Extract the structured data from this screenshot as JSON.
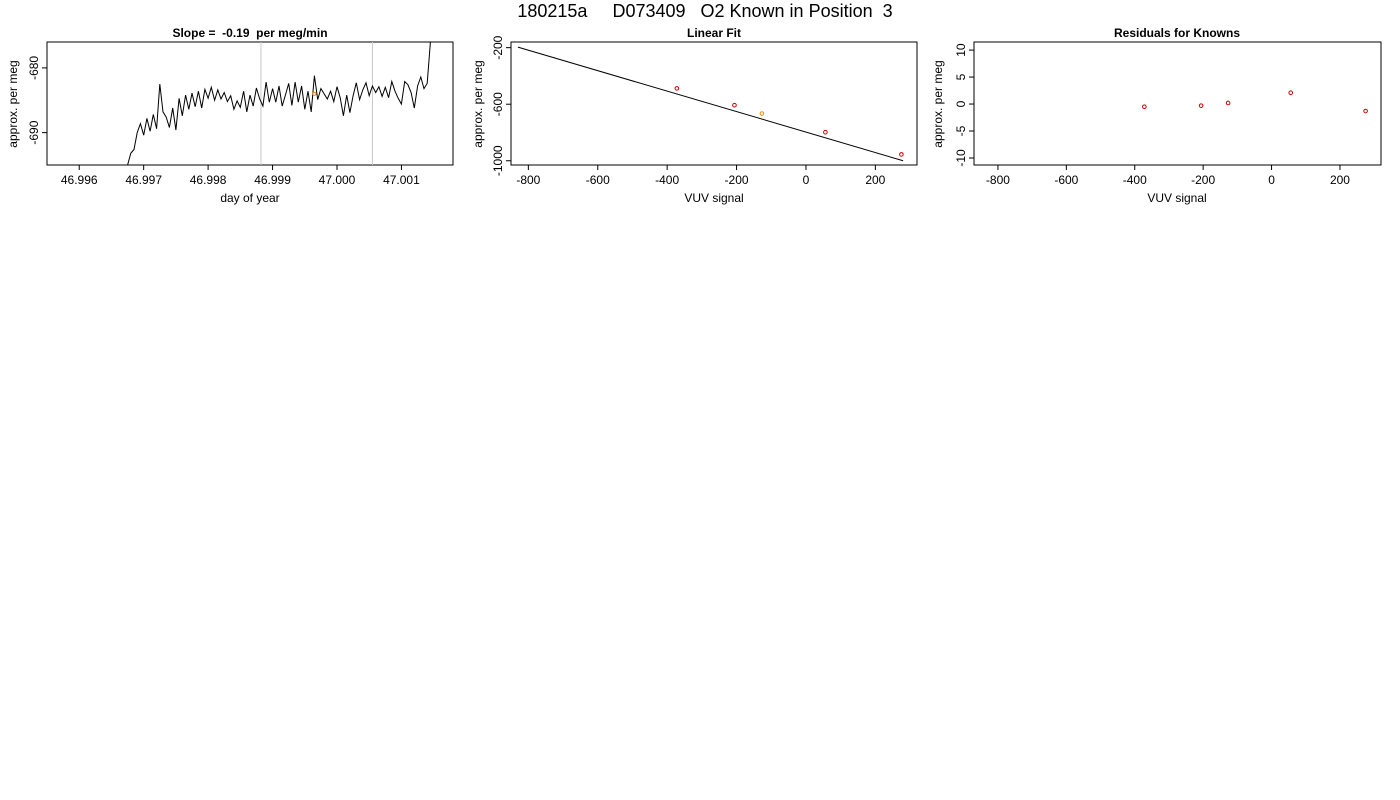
{
  "title": "180215a     D073409   O2 Known in Position  3",
  "chart_data": [
    {
      "type": "line",
      "title": "Slope =  -0.19  per meg/min",
      "xlabel": "day of year",
      "ylabel": "approx. per meg",
      "xlim": [
        46.9955,
        47.0018
      ],
      "ylim": [
        -695.0,
        -676.0
      ],
      "xticks": [
        "46.996",
        "46.997",
        "46.998",
        "46.999",
        "47.000",
        "47.001"
      ],
      "xtick_values": [
        46.996,
        46.997,
        46.998,
        46.999,
        47.0,
        47.001
      ],
      "yticks": [
        "-680",
        "-690"
      ],
      "ytick_values": [
        -680,
        -690
      ],
      "vlines_x": [
        46.99882,
        47.00055
      ],
      "vline_color": "#c8c8c8",
      "line_color": "#000000",
      "marker_color": "#ff8c00",
      "marker": {
        "x": 46.99965,
        "y": -684.0
      },
      "series": [
        {
          "x": [
            46.99675,
            46.9968,
            46.99685,
            46.9969,
            46.99695,
            46.997,
            46.99705,
            46.9971,
            46.99715,
            46.9972,
            46.99725,
            46.9973,
            46.99735,
            46.9974,
            46.99745,
            46.9975,
            46.99755,
            46.9976,
            46.99765,
            46.9977,
            46.99775,
            46.9978,
            46.99785,
            46.9979,
            46.99795,
            46.998,
            46.99805,
            46.9981,
            46.99815,
            46.9982,
            46.99825,
            46.9983,
            46.99835,
            46.9984,
            46.99845,
            46.9985,
            46.99855,
            46.9986,
            46.99865,
            46.9987,
            46.99875,
            46.9988,
            46.99885,
            46.9989,
            46.99895,
            46.999,
            46.99905,
            46.9991,
            46.99915,
            46.9992,
            46.99925,
            46.9993,
            46.99935,
            46.9994,
            46.99945,
            46.9995,
            46.99955,
            46.9996,
            46.99965,
            46.9997,
            46.99975,
            46.9998,
            46.99985,
            46.9999,
            46.99995,
            47.0,
            47.00005,
            47.0001,
            47.00015,
            47.0002,
            47.00025,
            47.0003,
            47.00035,
            47.0004,
            47.00045,
            47.0005,
            47.00055,
            47.0006,
            47.00065,
            47.0007,
            47.00075,
            47.0008,
            47.00085,
            47.0009,
            47.00095,
            47.001,
            47.00105,
            47.0011,
            47.00115,
            47.0012,
            47.00125,
            47.0013,
            47.00135,
            47.0014,
            47.00145
          ],
          "y": [
            -695.0,
            -693.2,
            -692.6,
            -690.0,
            -688.6,
            -690.4,
            -687.8,
            -689.8,
            -687.2,
            -689.4,
            -682.5,
            -686.8,
            -687.6,
            -689.2,
            -686.2,
            -689.6,
            -684.7,
            -687.4,
            -684.2,
            -686.4,
            -683.9,
            -686.0,
            -683.6,
            -686.2,
            -683.3,
            -684.7,
            -683.0,
            -685.0,
            -683.4,
            -684.8,
            -683.8,
            -685.2,
            -684.3,
            -686.4,
            -685.1,
            -686.1,
            -683.6,
            -686.8,
            -684.2,
            -685.9,
            -683.1,
            -684.8,
            -685.9,
            -682.2,
            -685.3,
            -683.2,
            -685.3,
            -682.8,
            -685.9,
            -684.2,
            -682.4,
            -685.8,
            -682.2,
            -685.3,
            -682.8,
            -686.4,
            -683.6,
            -686.8,
            -681.2,
            -684.9,
            -683.2,
            -684.0,
            -684.8,
            -683.6,
            -685.2,
            -682.9,
            -684.6,
            -687.4,
            -684.2,
            -686.9,
            -684.3,
            -682.3,
            -684.9,
            -683.4,
            -682.3,
            -684.3,
            -682.8,
            -683.8,
            -682.9,
            -684.4,
            -683.0,
            -684.6,
            -682.1,
            -683.6,
            -684.7,
            -685.6,
            -682.1,
            -682.6,
            -683.8,
            -686.2,
            -682.8,
            -681.4,
            -683.2,
            -682.4,
            -676.0
          ]
        }
      ]
    },
    {
      "type": "scatter",
      "title": "Linear Fit",
      "xlabel": "VUV signal",
      "ylabel": "approx. per meg",
      "xlim": [
        -850,
        320
      ],
      "ylim": [
        -1030,
        -160
      ],
      "xticks": [
        "-800",
        "-600",
        "-400",
        "-200",
        "0",
        "200"
      ],
      "xtick_values": [
        -800,
        -600,
        -400,
        -200,
        0,
        200
      ],
      "yticks": [
        "-200",
        "-600",
        "-1000"
      ],
      "ytick_values": [
        -200,
        -600,
        -1000
      ],
      "fit_line": {
        "x": [
          -830,
          280
        ],
        "y": [
          -196,
          -1000
        ],
        "color": "#000000"
      },
      "point_color": "#cc0000",
      "highlight_color": "#ff8c00",
      "points": [
        {
          "x": -372,
          "y": -488
        },
        {
          "x": -206,
          "y": -607
        },
        {
          "x": -127,
          "y": -666,
          "highlight": true
        },
        {
          "x": 56,
          "y": -798
        },
        {
          "x": 275,
          "y": -955
        }
      ]
    },
    {
      "type": "scatter",
      "title": "Residuals for Knowns",
      "xlabel": "VUV signal",
      "ylabel": "approx. per meg",
      "xlim": [
        -870,
        320
      ],
      "ylim": [
        -11.3,
        11.5
      ],
      "xticks": [
        "-800",
        "-600",
        "-400",
        "-200",
        "0",
        "200"
      ],
      "xtick_values": [
        -800,
        -600,
        -400,
        -200,
        0,
        200
      ],
      "yticks": [
        "10",
        "5",
        "0",
        "-5",
        "-10"
      ],
      "ytick_values": [
        10,
        5,
        0,
        -5,
        -10
      ],
      "point_color": "#cc0000",
      "points": [
        {
          "x": -372,
          "y": -0.5
        },
        {
          "x": -206,
          "y": -0.3
        },
        {
          "x": -127,
          "y": 0.2
        },
        {
          "x": 56,
          "y": 2.1
        },
        {
          "x": 275,
          "y": -1.3
        }
      ]
    }
  ]
}
